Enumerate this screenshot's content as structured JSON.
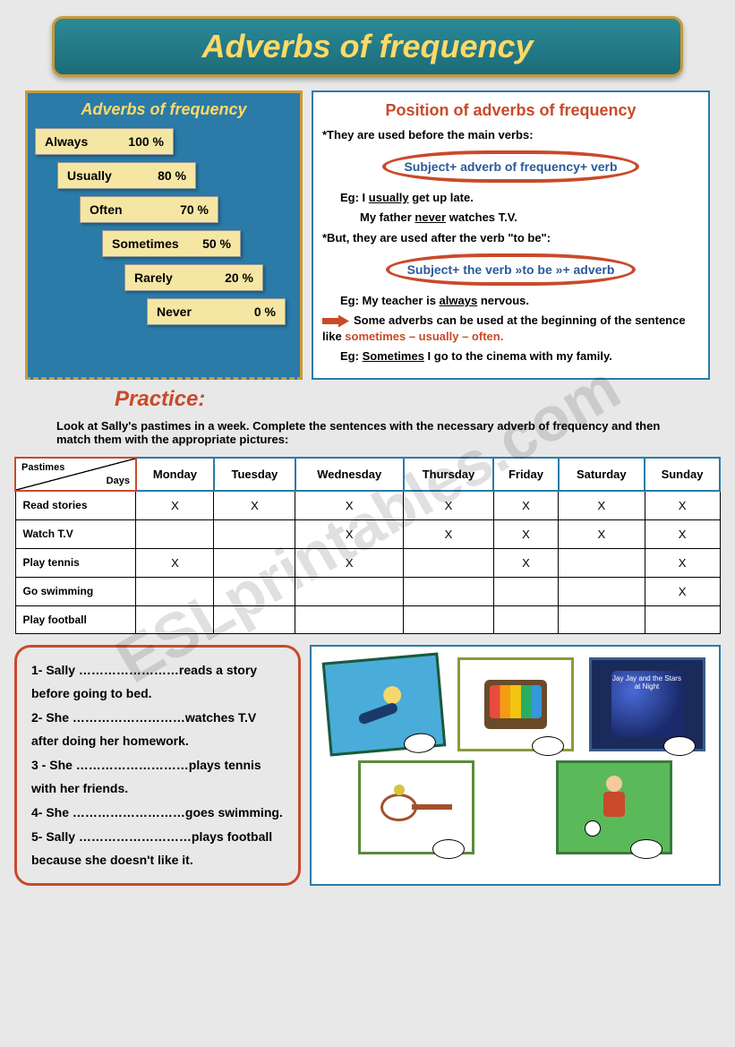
{
  "title": "Adverbs of frequency",
  "watermark": "ESLprintables.com",
  "freq_box": {
    "title": "Adverbs of frequency",
    "items": [
      {
        "word": "Always",
        "pct": "100 %",
        "indent": 0
      },
      {
        "word": "Usually",
        "pct": "80 %",
        "indent": 25
      },
      {
        "word": "Often",
        "pct": "70 %",
        "indent": 50
      },
      {
        "word": "Sometimes",
        "pct": "50 %",
        "indent": 75
      },
      {
        "word": "Rarely",
        "pct": "20 %",
        "indent": 100
      },
      {
        "word": "Never",
        "pct": "0 %",
        "indent": 125
      }
    ]
  },
  "position_box": {
    "title": "Position of adverbs of frequency",
    "intro": "*They are used before the main verbs:",
    "rule1": "Subject+ adverb of frequency+ verb",
    "eg1a_pre": "Eg: I ",
    "eg1a_u": "usually",
    "eg1a_post": " get up late.",
    "eg1b_pre": "My father ",
    "eg1b_u": "never",
    "eg1b_post": " watches T.V.",
    "intro2": "*But, they are used after the verb \"to be\":",
    "rule2": "Subject+ the verb »to be »+ adverb",
    "eg2_pre": "Eg: My teacher is ",
    "eg2_u": "always",
    "eg2_post": " nervous.",
    "note_pre": "Some adverbs can be used at the beginning of the sentence like ",
    "note_red": "sometimes – usually – often.",
    "eg3_pre": "Eg: ",
    "eg3_u": "Sometimes",
    "eg3_post": " I go to the cinema with my family."
  },
  "practice_label": "Practice:",
  "instructions": "Look at Sally's pastimes in a week. Complete the sentences with the necessary adverb of frequency and then match them with the appropriate pictures:",
  "table": {
    "corner_top": "Pastimes",
    "corner_bot": "Days",
    "days": [
      "Monday",
      "Tuesday",
      "Wednesday",
      "Thursday",
      "Friday",
      "Saturday",
      "Sunday"
    ],
    "rows": [
      {
        "label": "Read stories",
        "cells": [
          "X",
          "X",
          "X",
          "X",
          "X",
          "X",
          "X"
        ]
      },
      {
        "label": "Watch T.V",
        "cells": [
          "",
          "",
          "X",
          "X",
          "X",
          "X",
          "X"
        ]
      },
      {
        "label": "Play tennis",
        "cells": [
          "X",
          "",
          "X",
          "",
          "X",
          "",
          "X"
        ]
      },
      {
        "label": "Go swimming",
        "cells": [
          "",
          "",
          "",
          "",
          "",
          "",
          "X"
        ]
      },
      {
        "label": "Play football",
        "cells": [
          "",
          "",
          "",
          "",
          "",
          "",
          ""
        ]
      }
    ]
  },
  "sentences": {
    "s1": "1- Sally ……………………reads a story before going to bed.",
    "s2": "2- She ………………………watches T.V after doing her homework.",
    "s3": "3 - She ………………………plays tennis with her friends.",
    "s4": "4- She ………………………goes swimming.",
    "s5": "5- Sally ………………………plays football because she doesn't like it."
  },
  "book_text": "Jay Jay and the Stars at Night"
}
